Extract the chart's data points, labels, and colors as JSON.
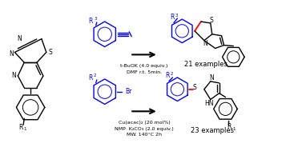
{
  "bg_color": "#ffffff",
  "blue": "#0000ff",
  "red": "#ff0000",
  "black": "#000000",
  "text_top1": "t-BuOK (4.0 equiv.)",
  "text_top2": "DMF r.t. 5min.",
  "text_bot1": "Cu(acac)₂ (20 mol%)",
  "text_bot2": "NMP  K₂CO₃ (2.0 equiv.)",
  "text_bot3": "MW. 140°C 2h",
  "label_top": "21 examples",
  "label_bot": "23 examples"
}
